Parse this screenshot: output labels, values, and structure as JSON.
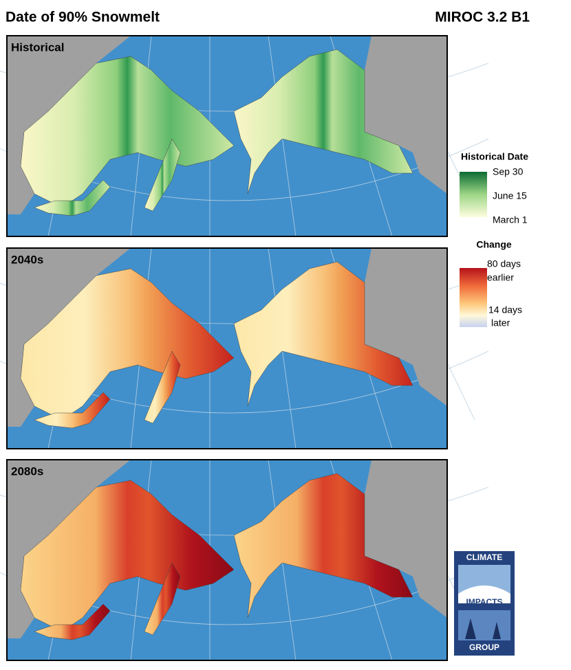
{
  "header": {
    "title": "Date of 90%  Snowmelt",
    "model": "MIROC 3.2 B1"
  },
  "panels": [
    {
      "label": "Historical"
    },
    {
      "label": "2040s"
    },
    {
      "label": "2080s"
    }
  ],
  "legend_historical": {
    "title": "Historical Date",
    "labels": [
      "Sep 30",
      "June 15",
      "March 1"
    ]
  },
  "legend_change": {
    "title": "Change",
    "top": [
      "80 days",
      "earlier"
    ],
    "bottom": [
      "14 days",
      "later"
    ]
  },
  "logo": {
    "lines": [
      "CLIMATE",
      "IMPACTS",
      "GROUP"
    ]
  }
}
